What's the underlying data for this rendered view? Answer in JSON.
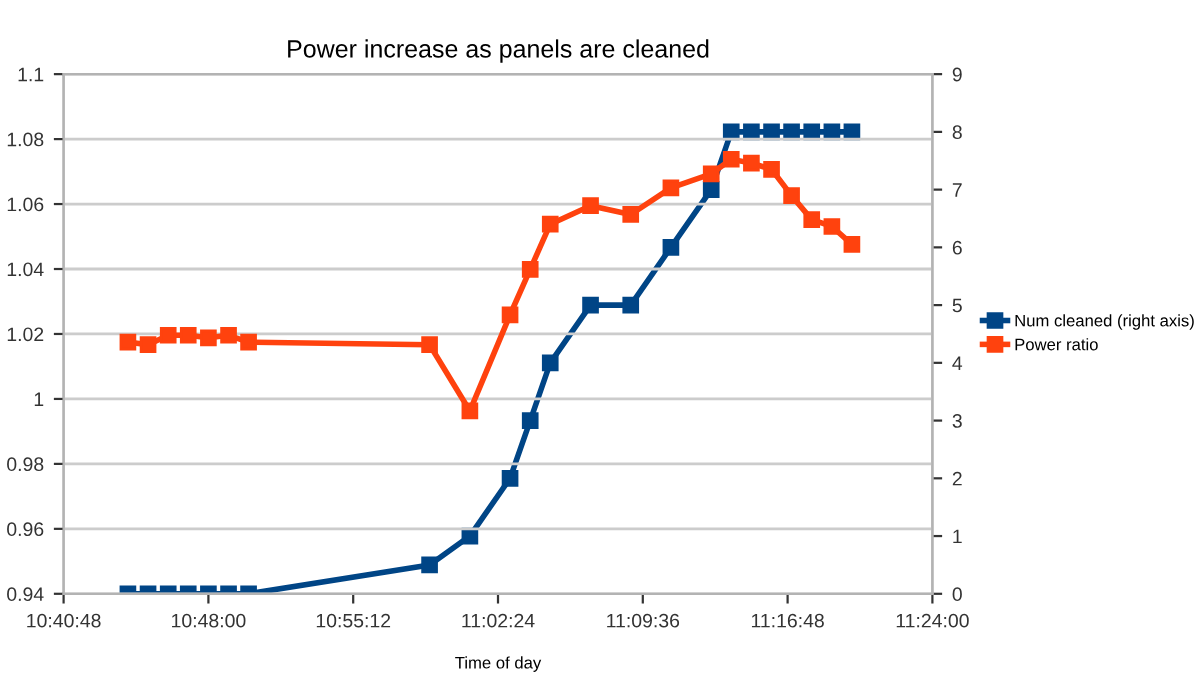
{
  "chart_data": {
    "type": "line",
    "title": "Power increase as panels are cleaned",
    "xlabel": "Time of day",
    "x": [
      10.7333,
      10.75,
      10.7667,
      10.7833,
      10.8,
      10.8167,
      10.8333,
      10.9833,
      11.0167,
      11.05,
      11.0667,
      11.0833,
      11.1167,
      11.15,
      11.1833,
      11.2167,
      11.2333,
      11.25,
      11.2667,
      11.2833,
      11.3,
      11.3167,
      11.3333
    ],
    "series": [
      {
        "name": "Num cleaned (right axis)",
        "color": "#004586",
        "axis": "y2",
        "values": [
          0,
          0,
          0,
          0,
          0,
          0,
          0,
          0.5,
          1,
          2,
          3,
          4,
          5,
          5,
          6,
          7,
          8,
          8,
          8,
          8,
          8,
          8,
          8
        ]
      },
      {
        "name": "Power ratio",
        "color": "#ff420e",
        "values": [
          1.0175,
          1.0167,
          1.0196,
          1.0196,
          1.0188,
          1.0196,
          1.0175,
          1.0167,
          0.9963,
          1.0259,
          1.0399,
          1.0538,
          1.0595,
          1.0568,
          1.065,
          1.0693,
          1.0738,
          1.0726,
          1.0707,
          1.0626,
          1.0552,
          1.0531,
          1.0476
        ]
      }
    ],
    "xlim": [
      10.68,
      11.4
    ],
    "xticks": [
      {
        "value": 10.68,
        "label": "10:40:48"
      },
      {
        "value": 10.8,
        "label": "10:48:00"
      },
      {
        "value": 10.92,
        "label": "10:55:12"
      },
      {
        "value": 11.04,
        "label": "11:02:24"
      },
      {
        "value": 11.16,
        "label": "11:09:36"
      },
      {
        "value": 11.28,
        "label": "11:16:48"
      },
      {
        "value": 11.4,
        "label": "11:24:00"
      }
    ],
    "ylim": [
      0.94,
      1.1
    ],
    "yticks": [
      0.94,
      0.96,
      0.98,
      1,
      1.02,
      1.04,
      1.06,
      1.08,
      1.1
    ],
    "y2lim": [
      0,
      9
    ],
    "y2ticks": [
      0,
      1,
      2,
      3,
      4,
      5,
      6,
      7,
      8,
      9
    ],
    "grid": "y",
    "legend": "right",
    "marker": "square",
    "line_style": "solid"
  }
}
